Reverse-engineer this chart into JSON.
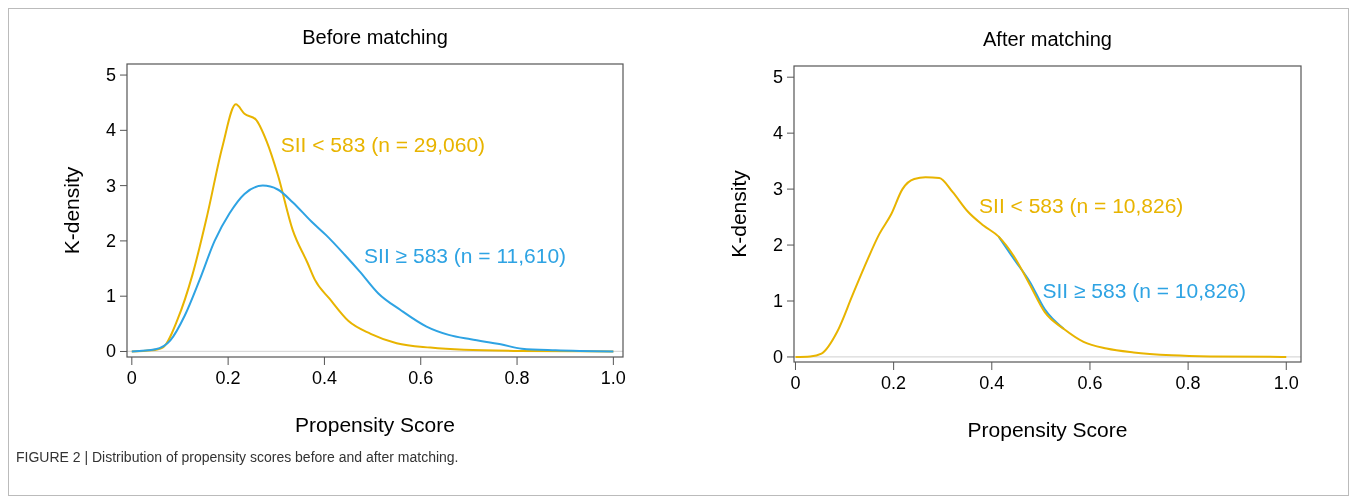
{
  "chart_data": [
    {
      "type": "line",
      "title": "Before matching",
      "xlabel": "Propensity Score",
      "ylabel": "K-density",
      "xlim": [
        -0.01,
        1.02
      ],
      "ylim": [
        -0.1,
        5.2
      ],
      "xticks": [
        0,
        0.2,
        0.4,
        0.6,
        0.8,
        {
          "value": 1,
          "label": "1.0"
        }
      ],
      "yticks": [
        0,
        1,
        2,
        3,
        4,
        5
      ],
      "grid": false,
      "line_style": "solid",
      "marker": "none",
      "ref_lines": [
        {
          "axis": "y",
          "value": 0,
          "color": "#d9d9d9"
        }
      ],
      "series": [
        {
          "name": "SII < 583 (n = 29,060)",
          "color": "#e8b400",
          "x": [
            0,
            0.041,
            0.064,
            0.095,
            0.126,
            0.157,
            0.188,
            0.216,
            0.234,
            0.257,
            0.28,
            0.303,
            0.334,
            0.365,
            0.38,
            0.411,
            0.45,
            0.496,
            0.55,
            0.62,
            0.69,
            0.8,
            1
          ],
          "values": [
            0,
            0.02,
            0.07,
            0.58,
            1.39,
            2.48,
            3.7,
            4.47,
            4.3,
            4.2,
            3.8,
            3.2,
            2.2,
            1.6,
            1.3,
            0.95,
            0.55,
            0.32,
            0.15,
            0.07,
            0.03,
            0.01,
            0
          ]
        },
        {
          "name": "SII ≥ 583 (n = 11,610)",
          "color": "#2ea3e3",
          "x": [
            0,
            0.049,
            0.08,
            0.11,
            0.141,
            0.172,
            0.203,
            0.234,
            0.272,
            0.303,
            0.334,
            0.373,
            0.404,
            0.442,
            0.473,
            0.512,
            0.558,
            0.612,
            0.658,
            0.704,
            0.766,
            0.81,
            0.88,
            1
          ],
          "values": [
            0,
            0.04,
            0.2,
            0.65,
            1.3,
            2.0,
            2.5,
            2.85,
            3.0,
            2.93,
            2.7,
            2.35,
            2.1,
            1.75,
            1.45,
            1.05,
            0.75,
            0.45,
            0.3,
            0.22,
            0.13,
            0.05,
            0.02,
            0
          ]
        }
      ]
    },
    {
      "type": "line",
      "title": "After matching",
      "xlabel": "Propensity Score",
      "ylabel": "K-density",
      "xlim": [
        -0.003,
        1.03
      ],
      "ylim": [
        -0.09,
        5.2
      ],
      "xticks": [
        0,
        0.2,
        0.4,
        0.6,
        0.8,
        {
          "value": 1,
          "label": "1.0"
        }
      ],
      "yticks": [
        0,
        1,
        2,
        3,
        4,
        5
      ],
      "grid": false,
      "line_style": "solid",
      "marker": "none",
      "ref_lines": [
        {
          "axis": "y",
          "value": 0,
          "color": "#d9d9d9"
        }
      ],
      "annotations": [
        "FIGURE 2 | Distribution of propensity scores before and after matching."
      ],
      "series": [
        {
          "name": "SII ≥ 583 (n = 10,826)",
          "color": "#2ea3e3",
          "x": [
            0.414,
            0.445,
            0.477,
            0.508,
            0.547
          ],
          "values": [
            2.15,
            1.75,
            1.35,
            0.85,
            0.5
          ]
        },
        {
          "name": "SII < 583 (n = 10,826)",
          "color": "#e8b400",
          "x": [
            0,
            0.03,
            0.053,
            0.085,
            0.116,
            0.14,
            0.171,
            0.195,
            0.218,
            0.242,
            0.265,
            0.293,
            0.32,
            0.351,
            0.383,
            0.414,
            0.445,
            0.477,
            0.508,
            0.547,
            0.587,
            0.634,
            0.689,
            0.767,
            0.845,
            1
          ],
          "values": [
            0,
            0.01,
            0.06,
            0.45,
            1.1,
            1.6,
            2.2,
            2.55,
            3.0,
            3.18,
            3.21,
            3.2,
            2.95,
            2.6,
            2.35,
            2.15,
            1.8,
            1.3,
            0.8,
            0.5,
            0.27,
            0.15,
            0.08,
            0.03,
            0.01,
            0
          ]
        }
      ]
    }
  ]
}
